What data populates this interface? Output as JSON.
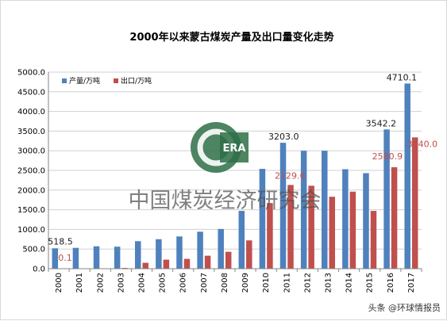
{
  "chart_data": {
    "type": "bar",
    "title": "2000年以来蒙古煤炭产量及出口量变化走势",
    "categories": [
      "2000",
      "2001",
      "2002",
      "2003",
      "2004",
      "2005",
      "2006",
      "2007",
      "2008",
      "2009",
      "2010",
      "2011",
      "2012",
      "2013",
      "2014",
      "2015",
      "2016",
      "2017"
    ],
    "series": [
      {
        "name": "产量/万吨",
        "color": "#4f81bd",
        "values": [
          518.5,
          530,
          570,
          560,
          700,
          750,
          820,
          940,
          1010,
          1470,
          2540,
          3203.0,
          3000,
          3000,
          2530,
          2430,
          3542.2,
          4710.1
        ]
      },
      {
        "name": "出口/万吨",
        "color": "#c0504d",
        "values": [
          0.1,
          0,
          0,
          20,
          150,
          230,
          250,
          330,
          430,
          720,
          1670,
          2129.6,
          2110,
          1830,
          1960,
          1470,
          2580.9,
          3340.0
        ]
      }
    ],
    "ylim": [
      0,
      5000
    ],
    "yticks": [
      "0.0",
      "500.0",
      "1000.0",
      "1500.0",
      "2000.0",
      "2500.0",
      "3000.0",
      "3500.0",
      "4000.0",
      "4500.0",
      "5000.0"
    ],
    "grid": true,
    "legend_position": "top-left",
    "annotations": [
      {
        "series": 0,
        "index": 0,
        "text": "518.5"
      },
      {
        "series": 1,
        "index": 0,
        "text": "0.1"
      },
      {
        "series": 0,
        "index": 11,
        "text": "3203.0"
      },
      {
        "series": 1,
        "index": 11,
        "text": "2129.6"
      },
      {
        "series": 0,
        "index": 16,
        "text": "3542.2"
      },
      {
        "series": 1,
        "index": 16,
        "text": "2580.9"
      },
      {
        "series": 0,
        "index": 17,
        "text": "4710.1"
      },
      {
        "series": 1,
        "index": 17,
        "text": "3340.0"
      }
    ]
  },
  "watermark": {
    "logo_text": "ERA",
    "org_name": "中国煤炭经济研究会"
  },
  "source": {
    "label": "头条 @环球情报员"
  }
}
